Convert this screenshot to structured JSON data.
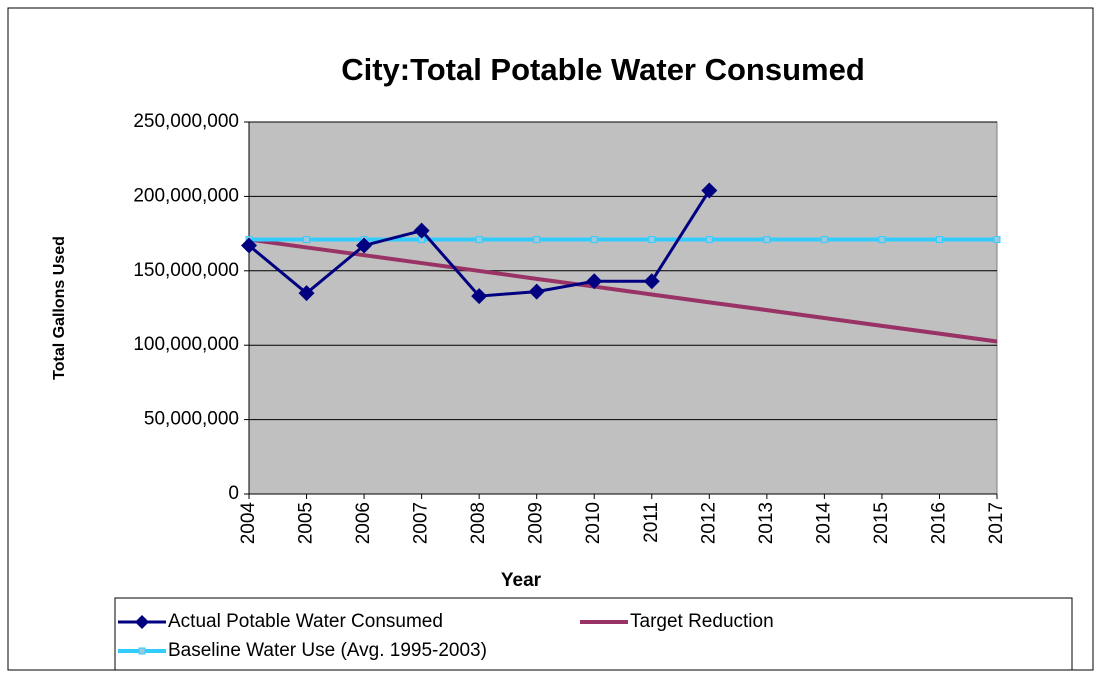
{
  "chart_data": {
    "type": "line",
    "title": "City:Total Potable Water Consumed",
    "x_label": "Year",
    "y_label": "Total Gallons Used",
    "categories": [
      "2004",
      "2005",
      "2006",
      "2007",
      "2008",
      "2009",
      "2010",
      "2011",
      "2012",
      "2013",
      "2014",
      "2015",
      "2016",
      "2017"
    ],
    "series": [
      {
        "name": "Actual Potable Water Consumed",
        "color": "#000080",
        "marker": "diamond",
        "values": [
          167000000,
          135000000,
          167000000,
          177000000,
          133000000,
          136000000,
          143000000,
          143000000,
          204000000,
          null,
          null,
          null,
          null,
          null
        ]
      },
      {
        "name": "Target Reduction",
        "color": "#993366",
        "marker": "none",
        "values": [
          171000000,
          165700000,
          160500000,
          155200000,
          149900000,
          144600000,
          139400000,
          134100000,
          128800000,
          123600000,
          118300000,
          113000000,
          107800000,
          102500000
        ]
      },
      {
        "name": "Baseline Water Use (Avg. 1995-2003)",
        "color": "#33CCFF",
        "marker": "square",
        "values": [
          171000000,
          171000000,
          171000000,
          171000000,
          171000000,
          171000000,
          171000000,
          171000000,
          171000000,
          171000000,
          171000000,
          171000000,
          171000000,
          171000000
        ]
      }
    ],
    "ylim": [
      0,
      250000000
    ],
    "yticks": [
      0,
      {
        "value": 50000000,
        "label": "50,000,000"
      },
      {
        "value": 100000000,
        "label": "100,000,000"
      },
      {
        "value": 150000000,
        "label": "150,000,000"
      },
      {
        "value": 200000000,
        "label": "200,000,000"
      },
      {
        "value": 250000000,
        "label": "250,000,000"
      }
    ],
    "grid": true,
    "legend": "bottom",
    "plot_background": "#C0C0C0"
  }
}
